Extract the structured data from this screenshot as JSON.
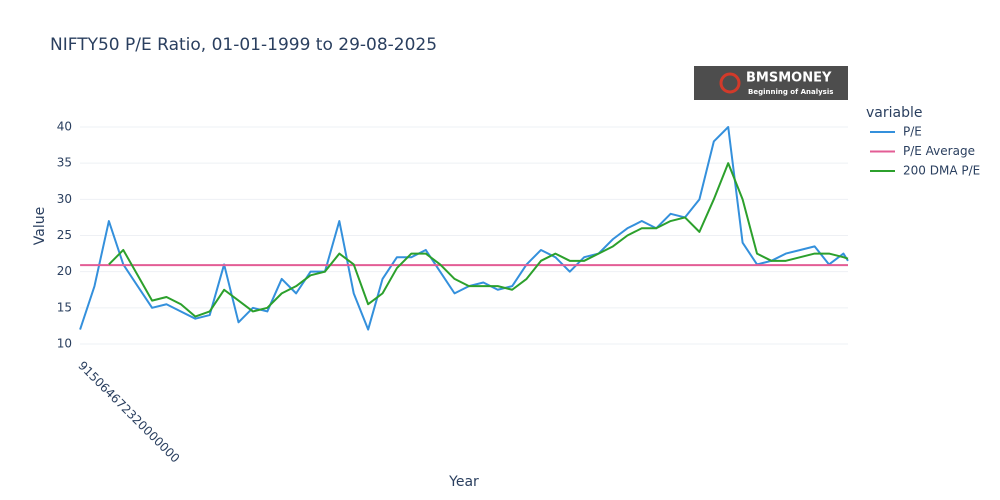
{
  "chart_data": {
    "type": "line",
    "title": "NIFTY50 P/E Ratio, 01-01-1999 to 29-08-2025",
    "x_label": "Year",
    "y_label": "Value",
    "legend_title": "variable",
    "legend_position": "right",
    "logo": {
      "name": "BMSMONEY",
      "tagline": "Beginning of Analysis"
    },
    "xlim": [
      915064672320000000,
      1756425600000000000
    ],
    "xticks": [
      915064672320000000
    ],
    "ylim": [
      9.2,
      43.0
    ],
    "yticks": [
      10,
      15,
      20,
      25,
      30,
      35,
      40
    ],
    "grid": true,
    "x": [
      915148800000000000,
      930927600000000000,
      946706400000000000,
      962485200000000000,
      978264000000000000,
      994042800000000000,
      1009821600000000000,
      1025600400000000000,
      1041379200000000000,
      1057158000000000000,
      1072936800000000000,
      1088715600000000000,
      1104494400000000000,
      1120273200000000000,
      1136052000000000000,
      1151830800000000000,
      1167609600000000000,
      1183388400000000000,
      1199167200000000000,
      1214946000000000000,
      1230724800000000000,
      1246503600000000000,
      1262282400000000000,
      1278061200000000000,
      1293840000000000000,
      1309618800000000000,
      1325397600000000000,
      1341176400000000000,
      1356955200000000000,
      1372734000000000000,
      1388512800000000000,
      1404291600000000000,
      1420070400000000000,
      1435849200000000000,
      1451628000000000000,
      1467406800000000000,
      1483185600000000000,
      1498964400000000000,
      1514743200000000000,
      1530522000000000000,
      1546300800000000000,
      1562079600000000000,
      1577858400000000000,
      1593637200000000000,
      1609416000000000000,
      1625194800000000000,
      1640973600000000000,
      1656752400000000000,
      1672531200000000000,
      1688310000000000000,
      1704088800000000000,
      1719867600000000000,
      1735646400000000000,
      1751425200000000000,
      1756425600000000000
    ],
    "series": [
      {
        "name": "P/E",
        "color": "#3490dc",
        "values": [
          12,
          18,
          27,
          21,
          18,
          15,
          15.5,
          14.5,
          13.5,
          14,
          21,
          13,
          15,
          14.5,
          19,
          17,
          20,
          20,
          27,
          17,
          12,
          19,
          22,
          22,
          23,
          20,
          17,
          18,
          18.5,
          17.5,
          18,
          21,
          23,
          22,
          20,
          22,
          22.5,
          24.5,
          26,
          27,
          26,
          28,
          27.5,
          30,
          38,
          40,
          24,
          21,
          21.5,
          22.5,
          23,
          23.5,
          21,
          22.5,
          21.5
        ]
      },
      {
        "name": "P/E Average",
        "color": "#e35d95",
        "values": [
          20.9,
          20.9,
          20.9,
          20.9,
          20.9,
          20.9,
          20.9,
          20.9,
          20.9,
          20.9,
          20.9,
          20.9,
          20.9,
          20.9,
          20.9,
          20.9,
          20.9,
          20.9,
          20.9,
          20.9,
          20.9,
          20.9,
          20.9,
          20.9,
          20.9,
          20.9,
          20.9,
          20.9,
          20.9,
          20.9,
          20.9,
          20.9,
          20.9,
          20.9,
          20.9,
          20.9,
          20.9,
          20.9,
          20.9,
          20.9,
          20.9,
          20.9,
          20.9,
          20.9,
          20.9,
          20.9,
          20.9,
          20.9,
          20.9,
          20.9,
          20.9,
          20.9,
          20.9,
          20.9,
          20.9
        ]
      },
      {
        "name": "200 DMA P/E",
        "color": "#2ca02c",
        "values": [
          null,
          null,
          21,
          23,
          19.5,
          16,
          16.5,
          15.5,
          13.8,
          14.5,
          17.5,
          16,
          14.5,
          15,
          17,
          18,
          19.5,
          20,
          22.5,
          21,
          15.5,
          17,
          20.5,
          22.5,
          22.5,
          21,
          19,
          18,
          18,
          18,
          17.5,
          19,
          21.5,
          22.5,
          21.5,
          21.5,
          22.5,
          23.5,
          25,
          26,
          26,
          27,
          27.5,
          25.5,
          30,
          35,
          30,
          22.5,
          21.5,
          21.5,
          22,
          22.5,
          22.5,
          22,
          21.8
        ]
      }
    ]
  }
}
